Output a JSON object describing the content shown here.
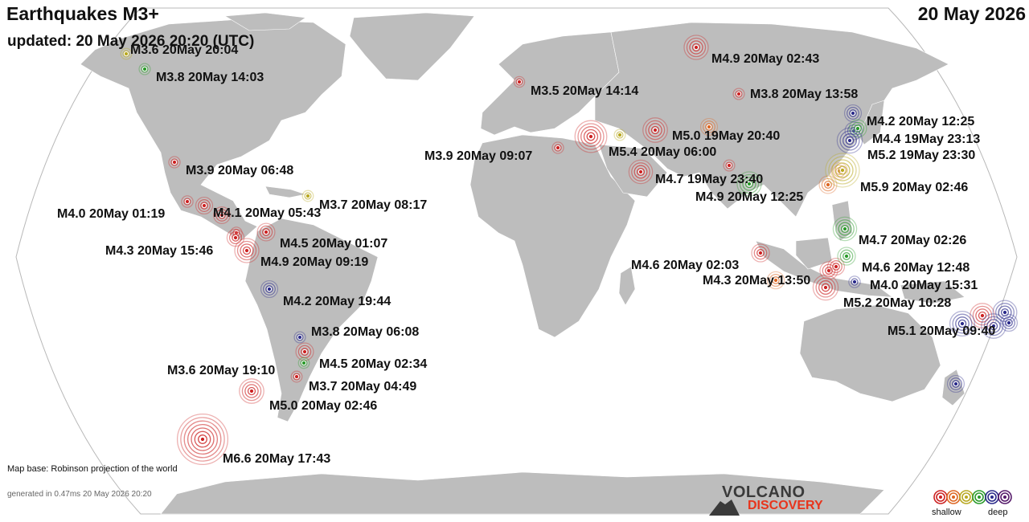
{
  "header": {
    "title": "Earthquakes M3+",
    "date": "20 May 2026",
    "updated": "updated: 20 May 2026 20:20 (UTC)"
  },
  "footer": {
    "map_base": "Map base: Robinson projection of the world",
    "generated": "generated in 0.47ms 20 May 2026 20:20",
    "logo_line1": "VOLCANO",
    "logo_line2": "DISCOVERY"
  },
  "legend": {
    "shallow_label": "shallow",
    "deep_label": "deep",
    "depth_colors": [
      "#cc2222",
      "#dd6622",
      "#b8a820",
      "#2a9a2a",
      "#2a2a8a",
      "#551a6a"
    ]
  },
  "colors": {
    "ocean": "#ffffff",
    "land": "#bdbdbd",
    "land_border": "#ffffff",
    "frame": "#b8b8b8"
  },
  "earthquakes": [
    {
      "label": "M3.6 20May 20:04",
      "magnitude": 3.6,
      "depth_class": "mid",
      "color": "#b8a820"
    },
    {
      "label": "M3.8 20May 14:03",
      "magnitude": 3.8,
      "depth_class": "intermediate",
      "color": "#2a9a2a"
    },
    {
      "label": "M3.9 20May 06:48",
      "magnitude": 3.9,
      "depth_class": "shallow",
      "color": "#cc2222"
    },
    {
      "label": "M4.0 20May 01:19",
      "magnitude": 4.0,
      "depth_class": "shallow",
      "color": "#cc2222"
    },
    {
      "label": "M4.1 20May 05:43",
      "magnitude": 4.1,
      "depth_class": "shallow",
      "color": "#cc2222"
    },
    {
      "label": "M3.7 20May 08:17",
      "magnitude": 3.7,
      "depth_class": "mid",
      "color": "#b8a820"
    },
    {
      "label": "M4.5 20May 01:07",
      "magnitude": 4.5,
      "depth_class": "shallow",
      "color": "#cc2222"
    },
    {
      "label": "M4.3 20May 15:46",
      "magnitude": 4.3,
      "depth_class": "shallow",
      "color": "#cc2222"
    },
    {
      "label": "M4.9 20May 09:19",
      "magnitude": 4.9,
      "depth_class": "shallow",
      "color": "#cc2222"
    },
    {
      "label": "M4.2 20May 19:44",
      "magnitude": 4.2,
      "depth_class": "deep",
      "color": "#2a2a8a"
    },
    {
      "label": "M3.8 20May 06:08",
      "magnitude": 3.8,
      "depth_class": "deep",
      "color": "#2a2a8a"
    },
    {
      "label": "M4.5 20May 02:34",
      "magnitude": 4.5,
      "depth_class": "shallow",
      "color": "#cc2222"
    },
    {
      "label": "M3.6 20May 19:10",
      "magnitude": 3.6,
      "depth_class": "intermediate",
      "color": "#2a9a2a"
    },
    {
      "label": "M3.7 20May 04:49",
      "magnitude": 3.7,
      "depth_class": "shallow",
      "color": "#cc2222"
    },
    {
      "label": "M5.0 20May 02:46",
      "magnitude": 5.0,
      "depth_class": "shallow",
      "color": "#cc2222"
    },
    {
      "label": "M6.6 20May 17:43",
      "magnitude": 6.6,
      "depth_class": "shallow",
      "color": "#cc2222"
    },
    {
      "label": "M3.5 20May 14:14",
      "magnitude": 3.5,
      "depth_class": "shallow",
      "color": "#cc2222"
    },
    {
      "label": "M4.9 20May 02:43",
      "magnitude": 4.9,
      "depth_class": "shallow",
      "color": "#cc2222"
    },
    {
      "label": "M3.8 20May 13:58",
      "magnitude": 3.8,
      "depth_class": "shallow",
      "color": "#cc2222"
    },
    {
      "label": "M3.9 20May 09:07",
      "magnitude": 3.9,
      "depth_class": "shallow",
      "color": "#cc2222"
    },
    {
      "label": "M5.4 20May 06:00",
      "magnitude": 5.4,
      "depth_class": "shallow",
      "color": "#cc2222"
    },
    {
      "label": "M5.0 19May 20:40",
      "magnitude": 5.0,
      "depth_class": "shallow",
      "color": "#cc2222"
    },
    {
      "label": "M4.7 19May 23:40",
      "magnitude": 4.7,
      "depth_class": "shallow",
      "color": "#cc2222"
    },
    {
      "label": "M4.9 20May 12:25",
      "magnitude": 4.9,
      "depth_class": "intermediate",
      "color": "#2a9a2a"
    },
    {
      "label": "M4.2 20May 12:25",
      "magnitude": 4.2,
      "depth_class": "deep",
      "color": "#2a2a8a"
    },
    {
      "label": "M4.4 19May 23:13",
      "magnitude": 4.4,
      "depth_class": "intermediate",
      "color": "#2a9a2a"
    },
    {
      "label": "M5.2 19May 23:30",
      "magnitude": 5.2,
      "depth_class": "deep",
      "color": "#2a2a8a"
    },
    {
      "label": "M5.9 20May 02:46",
      "magnitude": 5.9,
      "depth_class": "mid",
      "color": "#b8a820"
    },
    {
      "label": "M4.7 20May 02:26",
      "magnitude": 4.7,
      "depth_class": "intermediate",
      "color": "#2a9a2a"
    },
    {
      "label": "M4.6 20May 12:48",
      "magnitude": 4.6,
      "depth_class": "intermediate",
      "color": "#2a9a2a"
    },
    {
      "label": "M4.6 20May 02:03",
      "magnitude": 4.6,
      "depth_class": "shallow",
      "color": "#cc2222"
    },
    {
      "label": "M4.3 20May 13:50",
      "magnitude": 4.3,
      "depth_class": "shallow-mid",
      "color": "#dd6622"
    },
    {
      "label": "M4.0 20May 15:31",
      "magnitude": 4.0,
      "depth_class": "deep",
      "color": "#2a2a8a"
    },
    {
      "label": "M5.2 20May 10:28",
      "magnitude": 5.2,
      "depth_class": "shallow",
      "color": "#cc2222"
    },
    {
      "label": "M5.1 20May 09:40",
      "magnitude": 5.1,
      "depth_class": "deep",
      "color": "#2a2a8a"
    }
  ]
}
